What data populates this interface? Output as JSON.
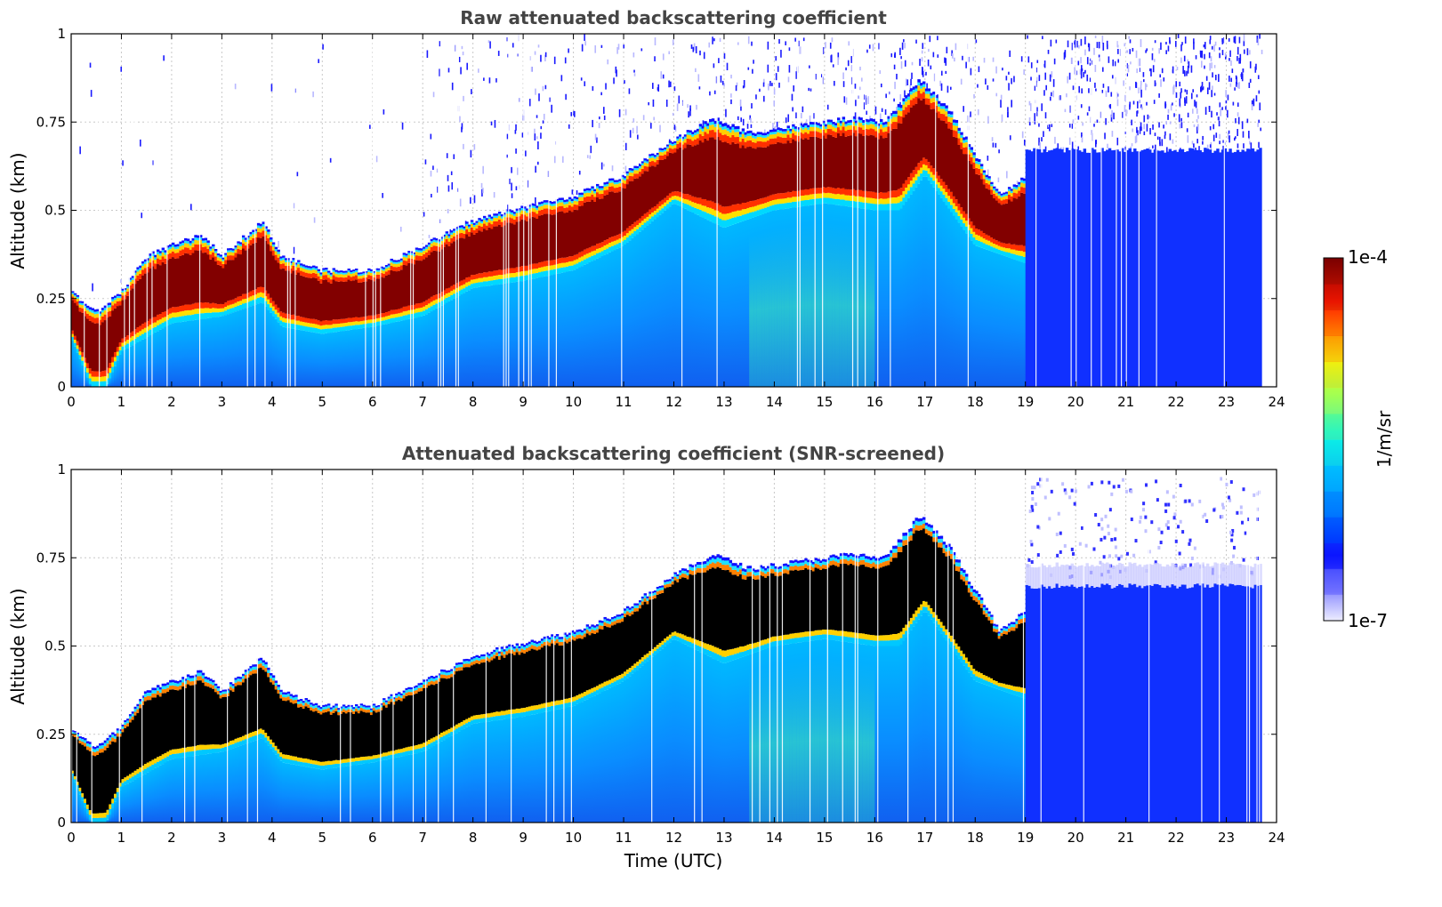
{
  "chart_data": [
    {
      "type": "heatmap",
      "id": "raw",
      "title": "Raw attenuated backscattering coefficient",
      "xlabel": "",
      "ylabel": "Altitude (km)",
      "xlim": [
        0,
        24
      ],
      "ylim": [
        0,
        1
      ],
      "xticks": [
        "0",
        "1",
        "2",
        "3",
        "4",
        "5",
        "6",
        "7",
        "8",
        "9",
        "10",
        "11",
        "12",
        "13",
        "14",
        "15",
        "16",
        "17",
        "18",
        "19",
        "20",
        "21",
        "22",
        "23",
        "24"
      ],
      "yticks": [
        "0",
        "0.25",
        "0.5",
        "0.75",
        "1"
      ],
      "grid": true,
      "layer_top_km": [
        {
          "t": 0.0,
          "z": 0.27
        },
        {
          "t": 0.5,
          "z": 0.21
        },
        {
          "t": 1.0,
          "z": 0.27
        },
        {
          "t": 1.5,
          "z": 0.37
        },
        {
          "t": 2.0,
          "z": 0.4
        },
        {
          "t": 2.6,
          "z": 0.43
        },
        {
          "t": 3.0,
          "z": 0.37
        },
        {
          "t": 3.8,
          "z": 0.47
        },
        {
          "t": 4.2,
          "z": 0.37
        },
        {
          "t": 5.0,
          "z": 0.33
        },
        {
          "t": 6.0,
          "z": 0.33
        },
        {
          "t": 7.0,
          "z": 0.4
        },
        {
          "t": 8.0,
          "z": 0.47
        },
        {
          "t": 9.0,
          "z": 0.51
        },
        {
          "t": 10.0,
          "z": 0.54
        },
        {
          "t": 11.0,
          "z": 0.6
        },
        {
          "t": 12.0,
          "z": 0.7
        },
        {
          "t": 12.8,
          "z": 0.76
        },
        {
          "t": 13.5,
          "z": 0.72
        },
        {
          "t": 14.5,
          "z": 0.74
        },
        {
          "t": 15.5,
          "z": 0.76
        },
        {
          "t": 16.2,
          "z": 0.75
        },
        {
          "t": 16.9,
          "z": 0.87
        },
        {
          "t": 17.5,
          "z": 0.78
        },
        {
          "t": 18.5,
          "z": 0.54
        },
        {
          "t": 19.0,
          "z": 0.6
        }
      ],
      "layer_base_km": [
        {
          "t": 0.0,
          "z": 0.14
        },
        {
          "t": 0.4,
          "z": 0.0
        },
        {
          "t": 0.7,
          "z": 0.0
        },
        {
          "t": 1.0,
          "z": 0.1
        },
        {
          "t": 2.0,
          "z": 0.18
        },
        {
          "t": 3.0,
          "z": 0.2
        },
        {
          "t": 3.8,
          "z": 0.24
        },
        {
          "t": 4.2,
          "z": 0.17
        },
        {
          "t": 5.0,
          "z": 0.15
        },
        {
          "t": 6.0,
          "z": 0.17
        },
        {
          "t": 7.0,
          "z": 0.2
        },
        {
          "t": 8.0,
          "z": 0.28
        },
        {
          "t": 9.0,
          "z": 0.3
        },
        {
          "t": 10.0,
          "z": 0.33
        },
        {
          "t": 11.0,
          "z": 0.4
        },
        {
          "t": 12.0,
          "z": 0.52
        },
        {
          "t": 13.0,
          "z": 0.45
        },
        {
          "t": 14.0,
          "z": 0.5
        },
        {
          "t": 15.0,
          "z": 0.52
        },
        {
          "t": 16.0,
          "z": 0.5
        },
        {
          "t": 16.5,
          "z": 0.5
        },
        {
          "t": 17.0,
          "z": 0.6
        },
        {
          "t": 18.0,
          "z": 0.4
        },
        {
          "t": 19.0,
          "z": 0.35
        }
      ],
      "upper_cloud": {
        "t_start": 19.0,
        "t_end": 23.7,
        "top_km": 0.67
      },
      "data_end_time": 23.7
    },
    {
      "type": "heatmap",
      "id": "snr",
      "title": "Attenuated backscattering coefficient (SNR-screened)",
      "xlabel": "Time (UTC)",
      "ylabel": "Altitude (km)",
      "xlim": [
        0,
        24
      ],
      "ylim": [
        0,
        1
      ],
      "xticks": [
        "0",
        "1",
        "2",
        "3",
        "4",
        "5",
        "6",
        "7",
        "8",
        "9",
        "10",
        "11",
        "12",
        "13",
        "14",
        "15",
        "16",
        "17",
        "18",
        "19",
        "20",
        "21",
        "22",
        "23",
        "24"
      ],
      "yticks": [
        "0",
        "0.25",
        "0.5",
        "0.75",
        "1"
      ],
      "grid": true,
      "screened_core_color": "#000000",
      "data_end_time": 23.7
    }
  ],
  "colorbar": {
    "label": "1/m/sr",
    "max_label": "1e-4",
    "min_label": "1e-7",
    "colors": [
      "#e8e8ff",
      "#9090ff",
      "#2020ff",
      "#0050ff",
      "#0090ff",
      "#00d0ff",
      "#20ffd0",
      "#80ff60",
      "#e0ff20",
      "#ffd000",
      "#ff7000",
      "#ff2000",
      "#c00000",
      "#7a0000"
    ]
  }
}
